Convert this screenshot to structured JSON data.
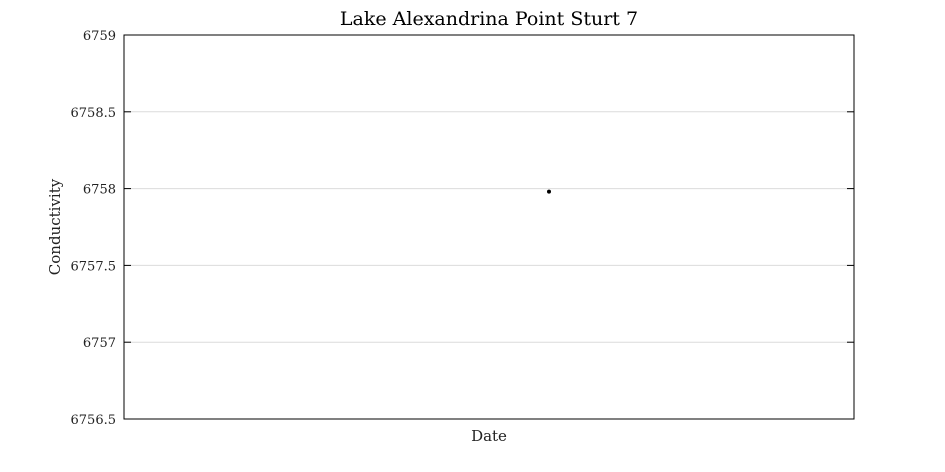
{
  "chart_data": {
    "type": "scatter",
    "title": "Lake Alexandrina Point Sturt 7",
    "xlabel": "Date",
    "ylabel": "Conductivity",
    "ylim": [
      6756.5,
      6759
    ],
    "yticks": [
      6756.5,
      6757,
      6757.5,
      6758,
      6758.5,
      6759
    ],
    "ytick_labels": [
      "6756.5",
      "6757",
      "6757.5",
      "6758",
      "6758.5",
      "6759"
    ],
    "grid": true,
    "series": [
      {
        "values": [
          6757.98
        ],
        "color": "#000000"
      }
    ]
  }
}
